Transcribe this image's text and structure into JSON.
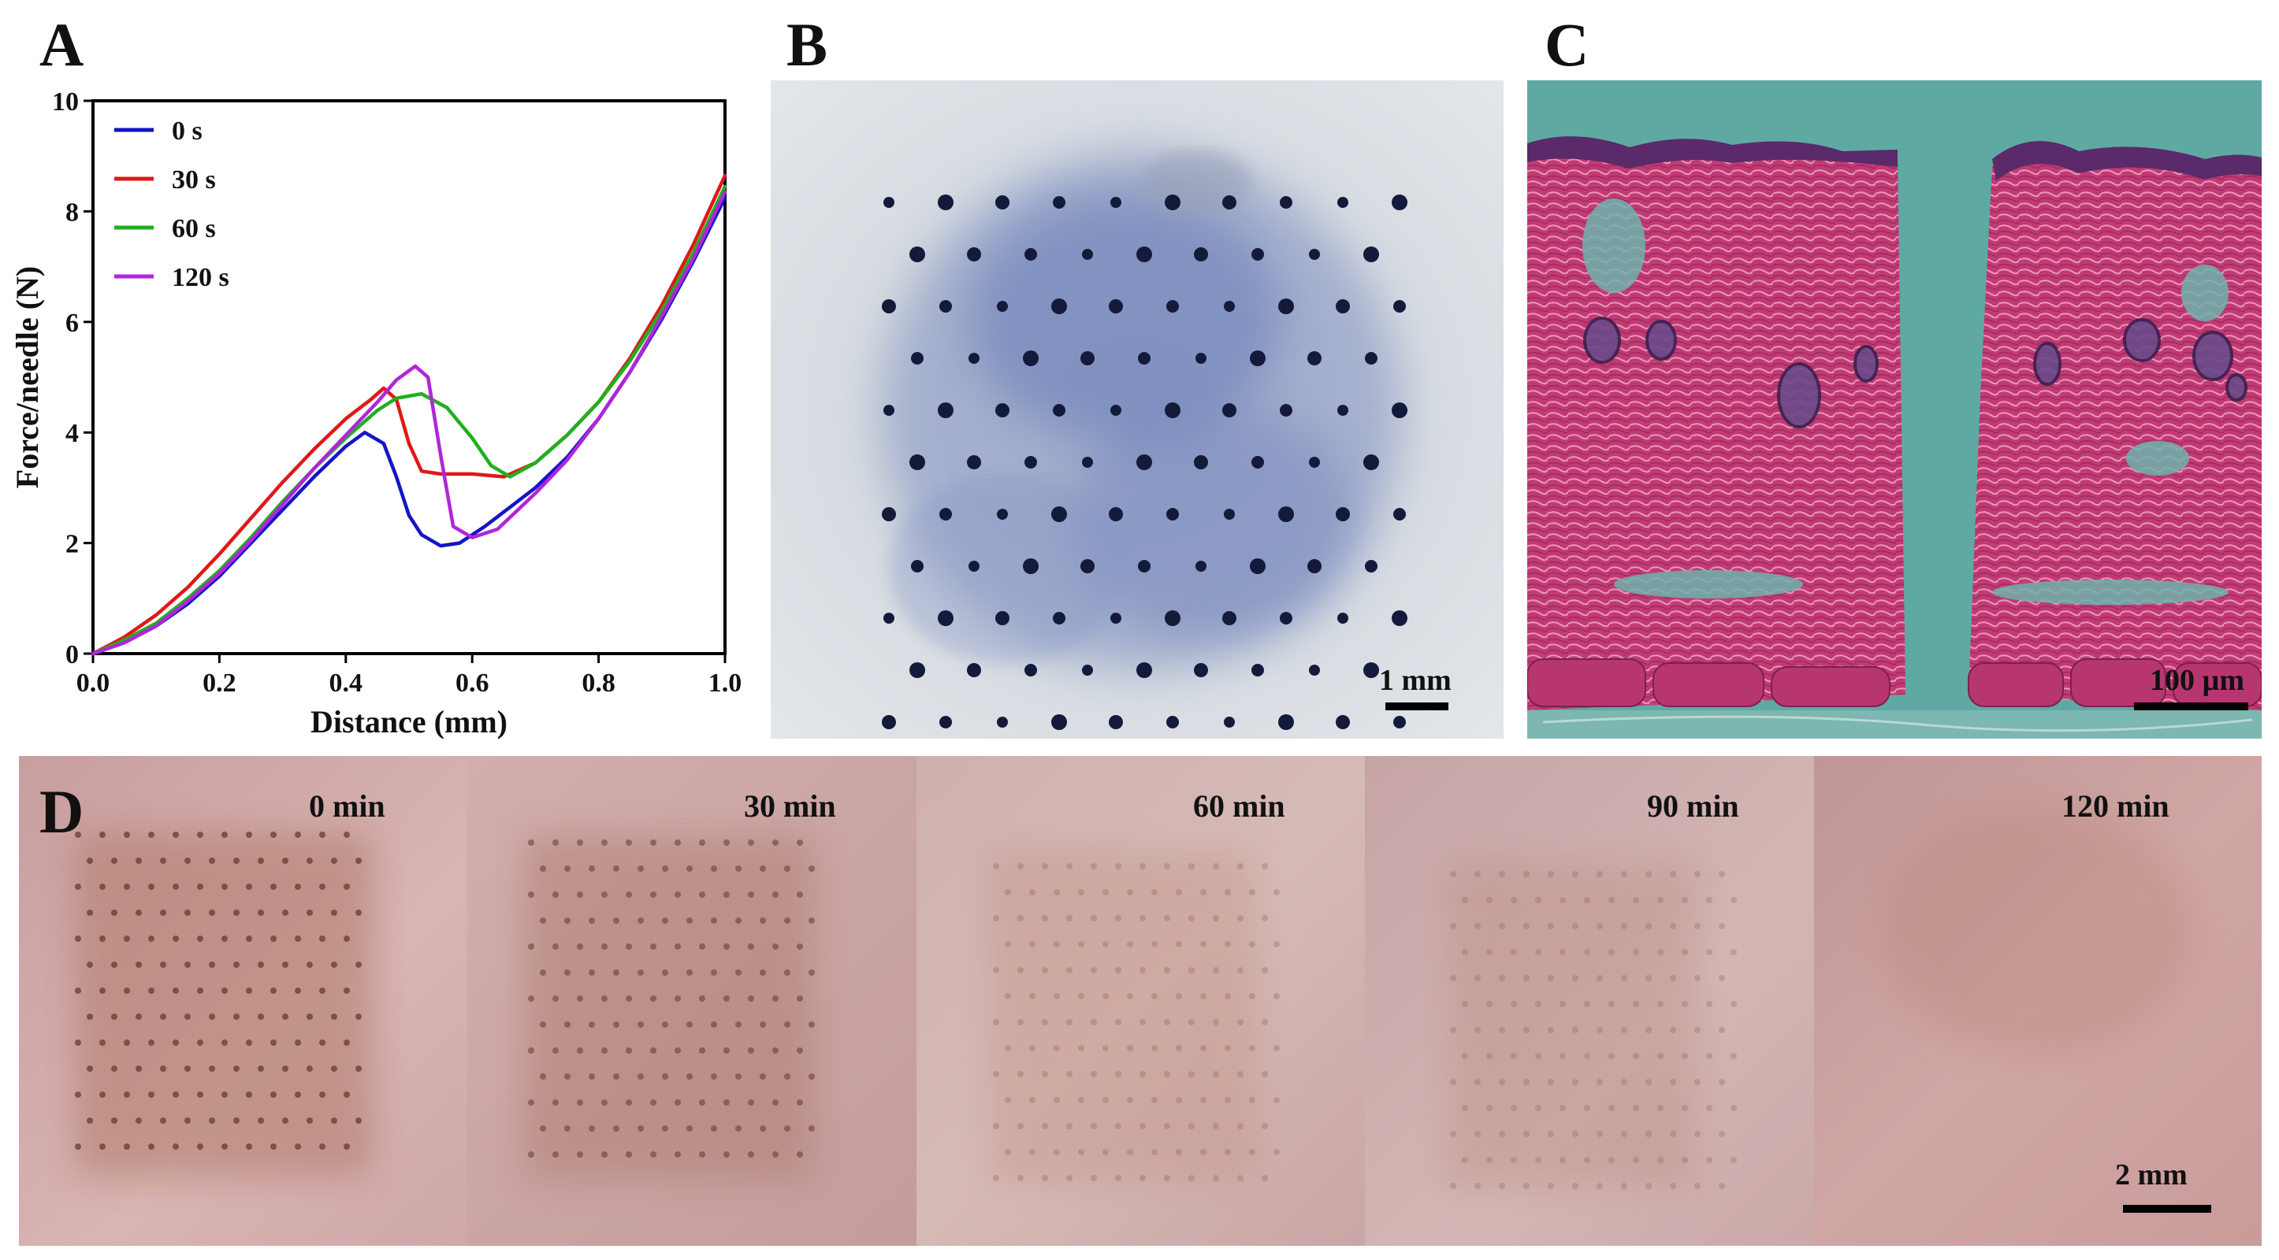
{
  "panels": {
    "a": {
      "letter": "A"
    },
    "b": {
      "letter": "B",
      "scale_label": "1 mm"
    },
    "c": {
      "letter": "C",
      "scale_label": "100 µm"
    },
    "d": {
      "letter": "D",
      "scale_label": "2 mm",
      "times": [
        "0 min",
        "30 min",
        "60 min",
        "90 min",
        "120 min"
      ]
    }
  },
  "chart_data": {
    "type": "line",
    "xlabel": "Distance (mm)",
    "ylabel": "Force/needle (N)",
    "xlim": [
      0,
      1.0
    ],
    "ylim": [
      0,
      10
    ],
    "xticks": [
      "0.0",
      "0.2",
      "0.4",
      "0.6",
      "0.8",
      "1.0"
    ],
    "yticks": [
      "0",
      "2",
      "4",
      "6",
      "8",
      "10"
    ],
    "legend_position": "top-left",
    "grid": false,
    "series": [
      {
        "name": "0 s",
        "color": "#1414c8",
        "points": [
          [
            0,
            0
          ],
          [
            0.05,
            0.2
          ],
          [
            0.1,
            0.5
          ],
          [
            0.15,
            0.9
          ],
          [
            0.2,
            1.4
          ],
          [
            0.25,
            2.0
          ],
          [
            0.3,
            2.6
          ],
          [
            0.35,
            3.2
          ],
          [
            0.4,
            3.75
          ],
          [
            0.43,
            4.0
          ],
          [
            0.46,
            3.8
          ],
          [
            0.48,
            3.2
          ],
          [
            0.5,
            2.5
          ],
          [
            0.52,
            2.15
          ],
          [
            0.55,
            1.95
          ],
          [
            0.58,
            2.0
          ],
          [
            0.62,
            2.3
          ],
          [
            0.66,
            2.65
          ],
          [
            0.7,
            3.0
          ],
          [
            0.75,
            3.55
          ],
          [
            0.8,
            4.25
          ],
          [
            0.85,
            5.1
          ],
          [
            0.9,
            6.05
          ],
          [
            0.95,
            7.1
          ],
          [
            1.0,
            8.25
          ]
        ]
      },
      {
        "name": "30 s",
        "color": "#e01818",
        "points": [
          [
            0,
            0
          ],
          [
            0.05,
            0.3
          ],
          [
            0.1,
            0.7
          ],
          [
            0.15,
            1.2
          ],
          [
            0.2,
            1.8
          ],
          [
            0.25,
            2.45
          ],
          [
            0.3,
            3.1
          ],
          [
            0.35,
            3.7
          ],
          [
            0.4,
            4.25
          ],
          [
            0.44,
            4.6
          ],
          [
            0.46,
            4.8
          ],
          [
            0.48,
            4.6
          ],
          [
            0.5,
            3.8
          ],
          [
            0.52,
            3.3
          ],
          [
            0.55,
            3.25
          ],
          [
            0.6,
            3.25
          ],
          [
            0.65,
            3.2
          ],
          [
            0.7,
            3.45
          ],
          [
            0.75,
            3.95
          ],
          [
            0.8,
            4.55
          ],
          [
            0.85,
            5.35
          ],
          [
            0.9,
            6.3
          ],
          [
            0.95,
            7.4
          ],
          [
            1.0,
            8.65
          ]
        ]
      },
      {
        "name": "60 s",
        "color": "#1fb01f",
        "points": [
          [
            0,
            0
          ],
          [
            0.05,
            0.25
          ],
          [
            0.1,
            0.55
          ],
          [
            0.15,
            1.0
          ],
          [
            0.2,
            1.5
          ],
          [
            0.25,
            2.1
          ],
          [
            0.3,
            2.75
          ],
          [
            0.35,
            3.35
          ],
          [
            0.4,
            3.9
          ],
          [
            0.45,
            4.4
          ],
          [
            0.48,
            4.62
          ],
          [
            0.52,
            4.7
          ],
          [
            0.56,
            4.45
          ],
          [
            0.6,
            3.9
          ],
          [
            0.63,
            3.4
          ],
          [
            0.66,
            3.2
          ],
          [
            0.7,
            3.45
          ],
          [
            0.75,
            3.95
          ],
          [
            0.8,
            4.55
          ],
          [
            0.85,
            5.3
          ],
          [
            0.9,
            6.2
          ],
          [
            0.95,
            7.25
          ],
          [
            1.0,
            8.45
          ]
        ]
      },
      {
        "name": "120 s",
        "color": "#b026d8",
        "points": [
          [
            0,
            0
          ],
          [
            0.05,
            0.2
          ],
          [
            0.1,
            0.5
          ],
          [
            0.15,
            0.95
          ],
          [
            0.2,
            1.45
          ],
          [
            0.25,
            2.05
          ],
          [
            0.3,
            2.7
          ],
          [
            0.35,
            3.35
          ],
          [
            0.4,
            3.95
          ],
          [
            0.45,
            4.55
          ],
          [
            0.48,
            4.95
          ],
          [
            0.51,
            5.2
          ],
          [
            0.53,
            5.0
          ],
          [
            0.55,
            3.6
          ],
          [
            0.57,
            2.3
          ],
          [
            0.6,
            2.1
          ],
          [
            0.64,
            2.25
          ],
          [
            0.7,
            2.9
          ],
          [
            0.75,
            3.5
          ],
          [
            0.8,
            4.25
          ],
          [
            0.85,
            5.1
          ],
          [
            0.9,
            6.1
          ],
          [
            0.95,
            7.15
          ],
          [
            1.0,
            8.35
          ]
        ]
      }
    ]
  }
}
